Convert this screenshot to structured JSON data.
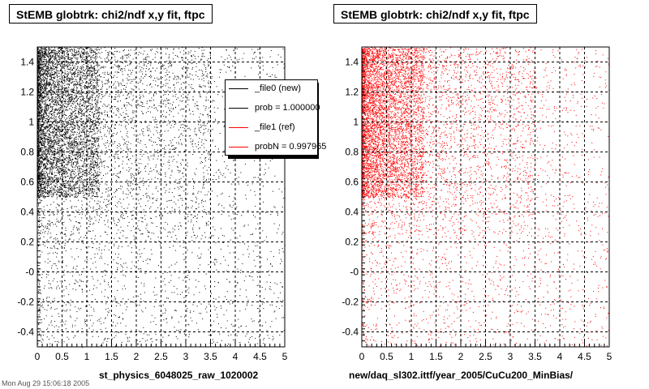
{
  "colors": {
    "new": "#000000",
    "ref": "#ff0000",
    "grid": "#000000"
  },
  "panels": [
    {
      "title": "StEMB globtrk: chi2/ndf x,y fit, ftpc",
      "xlabel": "st_physics_6048025_raw_1020002",
      "color": "#000000",
      "legend": {
        "entries": [
          {
            "label": "_file0 (new)",
            "color": "#000000"
          },
          {
            "label": "prob = 1.000000",
            "color": "#000000"
          },
          {
            "label": "_file1 (ref)",
            "color": "#ff0000"
          },
          {
            "label": "probN = 0.997965",
            "color": "#ff0000"
          }
        ]
      }
    },
    {
      "title": "StEMB globtrk: chi2/ndf x,y fit, ftpc",
      "xlabel": "new/daq_sl302.ittf/year_2005/CuCu200_MinBias/",
      "color": "#ff0000"
    }
  ],
  "footer": "Mon Aug 29 15:06:18 2005",
  "chart_data": [
    {
      "type": "scatter",
      "title": "StEMB globtrk: chi2/ndf x,y fit, ftpc",
      "xlabel": "st_physics_6048025_raw_1020002",
      "ylabel": "",
      "xlim": [
        0,
        5
      ],
      "ylim": [
        -0.5,
        1.5
      ],
      "xticks": [
        "0",
        "0.5",
        "1",
        "1.5",
        "2",
        "2.5",
        "3",
        "3.5",
        "4",
        "4.5",
        "5"
      ],
      "yticks": [
        "-0.4",
        "-0.2",
        "-0",
        "0.2",
        "0.4",
        "0.6",
        "0.8",
        "1",
        "1.2",
        "1.4"
      ],
      "grid": true,
      "legend_position": "top-right",
      "series": [
        {
          "name": "_file0 (new)",
          "color": "#000000",
          "density": "dense cluster x 0-1, y 0.5-1.5; sparse scatter elsewhere"
        }
      ],
      "legend_entries": [
        "_file0 (new)",
        "prob = 1.000000",
        "_file1 (ref)",
        "probN = 0.997965"
      ]
    },
    {
      "type": "scatter",
      "title": "StEMB globtrk: chi2/ndf x,y fit, ftpc",
      "xlabel": "new/daq_sl302.ittf/year_2005/CuCu200_MinBias/",
      "ylabel": "",
      "xlim": [
        0,
        5
      ],
      "ylim": [
        -0.5,
        1.5
      ],
      "xticks": [
        "0",
        "0.5",
        "1",
        "1.5",
        "2",
        "2.5",
        "3",
        "3.5",
        "4",
        "4.5",
        "5"
      ],
      "yticks": [
        "-0.4",
        "-0.2",
        "-0",
        "0.2",
        "0.4",
        "0.6",
        "0.8",
        "1",
        "1.2",
        "1.4"
      ],
      "grid": true,
      "series": [
        {
          "name": "_file1 (ref)",
          "color": "#ff0000",
          "density": "dense cluster x 0-1, y 0.5-1.5; sparse scatter elsewhere"
        }
      ]
    }
  ]
}
